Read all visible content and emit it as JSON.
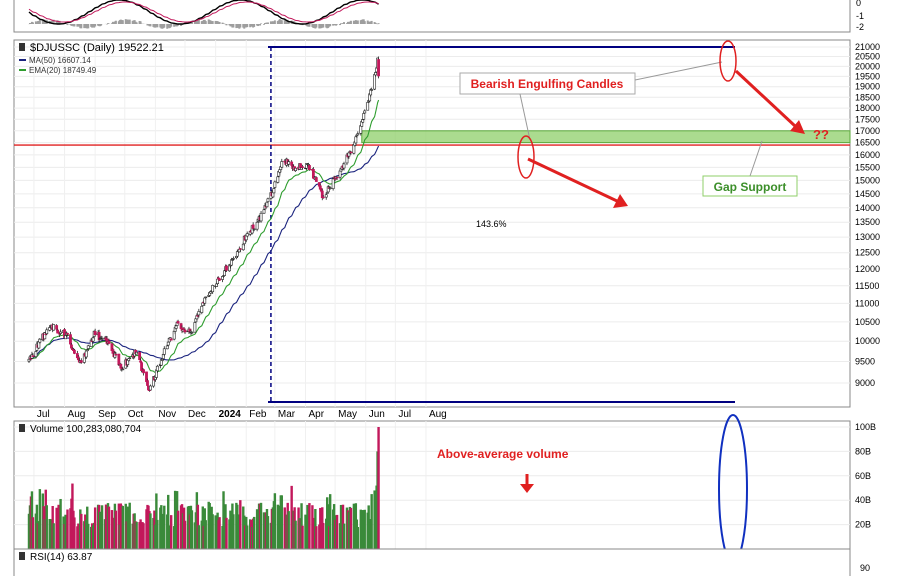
{
  "symbol_label": "$DJUSSC (Daily) 19522.21",
  "ma50_label": "MA(50) 16607.14",
  "ema20_label": "EMA(20) 18749.49",
  "volume_label": "Volume 100,283,080,704",
  "rsi_label": "RSI(14) 63.87",
  "macd_ticks": [
    "0",
    "-1",
    "-2"
  ],
  "rsi_tick": "90",
  "annotations": {
    "bearish": "Bearish Engulfing Candles",
    "gap_support": "Gap Support",
    "question": "??",
    "pct": "143.6%",
    "above_avg": "Above-average volume"
  },
  "colors": {
    "up": "#2e7d32",
    "down": "#c2185b",
    "ma50": "#1a237e",
    "ema20": "#2e9d2e",
    "annotation_red": "#e02020",
    "gap_green": "#8fcf6a",
    "navy": "#000080",
    "panel_bg": "#f2f2f2"
  },
  "chart_data": [
    {
      "type": "candlestick",
      "title": "$DJUSSC (Daily) 19522.21",
      "x_ticks": [
        "Jul",
        "Aug",
        "Sep",
        "Oct",
        "Nov",
        "Dec",
        "2024",
        "Feb",
        "Mar",
        "Apr",
        "May",
        "Jun",
        "Jul",
        "Aug"
      ],
      "y_ticks": [
        9000,
        9500,
        10000,
        10500,
        11000,
        11500,
        12000,
        12500,
        13000,
        13500,
        14000,
        14500,
        15000,
        15500,
        16000,
        16500,
        17000,
        17500,
        18000,
        18500,
        19000,
        19500,
        20000,
        20500,
        21000
      ],
      "ylim": [
        8500,
        21300
      ],
      "scale": "log",
      "series": [
        {
          "name": "MA(50)",
          "last": 16607.14
        },
        {
          "name": "EMA(20)",
          "last": 18749.49
        }
      ],
      "close_path": [
        [
          "2023-06-26",
          9550
        ],
        [
          "2023-07-10",
          10100
        ],
        [
          "2023-07-20",
          10350
        ],
        [
          "2023-08-03",
          10150
        ],
        [
          "2023-08-17",
          9450
        ],
        [
          "2023-08-31",
          10200
        ],
        [
          "2023-09-14",
          9950
        ],
        [
          "2023-09-28",
          9350
        ],
        [
          "2023-10-12",
          9750
        ],
        [
          "2023-10-26",
          8850
        ],
        [
          "2023-11-09",
          9700
        ],
        [
          "2023-11-23",
          10400
        ],
        [
          "2023-12-07",
          10250
        ],
        [
          "2023-12-21",
          11100
        ],
        [
          "2024-01-04",
          11700
        ],
        [
          "2024-01-18",
          12250
        ],
        [
          "2024-02-01",
          13050
        ],
        [
          "2024-02-15",
          13650
        ],
        [
          "2024-02-29",
          14700
        ],
        [
          "2024-03-08",
          15800
        ],
        [
          "2024-03-22",
          15500
        ],
        [
          "2024-04-05",
          15550
        ],
        [
          "2024-04-19",
          14350
        ],
        [
          "2024-05-03",
          15200
        ],
        [
          "2024-05-17",
          16150
        ],
        [
          "2024-05-31",
          17900
        ],
        [
          "2024-06-07",
          18850
        ],
        [
          "2024-06-13",
          20300
        ],
        [
          "2024-06-14",
          19522
        ]
      ],
      "resistance_level": 21000,
      "horizontal_level": 16400,
      "low_level": 8650,
      "gap_zone": [
        16500,
        17000
      ]
    },
    {
      "type": "bar",
      "title": "Volume 100,283,080,704",
      "y_ticks": [
        "20B",
        "40B",
        "60B",
        "80B",
        "100B"
      ],
      "ylim": [
        0,
        100
      ],
      "last_volume_billions": 100.28
    },
    {
      "type": "line",
      "title": "RSI(14) 63.87",
      "last": 63.87
    }
  ]
}
